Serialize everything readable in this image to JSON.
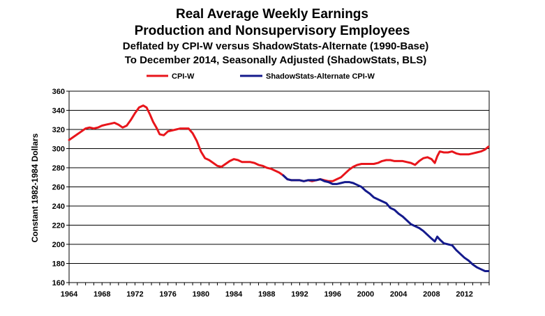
{
  "chart_data": {
    "type": "line",
    "title": [
      "Real Average Weekly Earnings",
      "Production and Nonsupervisory Employees"
    ],
    "subtitle": [
      "Deflated by CPI-W versus ShadowStats-Alternate (1990-Base)",
      "To December 2014, Seasonally Adjusted (ShadowStats, BLS)"
    ],
    "xlabel": "",
    "ylabel": "Constant 1982-1984 Dollars",
    "xlim": [
      1964,
      2015
    ],
    "ylim": [
      160,
      360
    ],
    "x_ticks": [
      "1964",
      "1968",
      "1972",
      "1976",
      "1980",
      "1984",
      "1988",
      "1992",
      "1996",
      "2000",
      "2004",
      "2008",
      "2012"
    ],
    "y_ticks": [
      "160",
      "180",
      "200",
      "220",
      "240",
      "260",
      "280",
      "300",
      "320",
      "340",
      "360"
    ],
    "grid": true,
    "legend_position": "top",
    "colors": {
      "cpi_w": "#e8151b",
      "shadowstats": "#141a8c"
    },
    "series": [
      {
        "name": "CPI-W",
        "color": "#e8151b",
        "points": [
          [
            1964.0,
            309
          ],
          [
            1964.5,
            312
          ],
          [
            1965.0,
            315
          ],
          [
            1965.5,
            318
          ],
          [
            1966.0,
            321
          ],
          [
            1966.5,
            322
          ],
          [
            1967.0,
            321
          ],
          [
            1967.5,
            322
          ],
          [
            1968.0,
            324
          ],
          [
            1968.5,
            325
          ],
          [
            1969.0,
            326
          ],
          [
            1969.5,
            327
          ],
          [
            1970.0,
            325
          ],
          [
            1970.5,
            322
          ],
          [
            1971.0,
            324
          ],
          [
            1971.5,
            330
          ],
          [
            1972.0,
            337
          ],
          [
            1972.5,
            343
          ],
          [
            1973.0,
            345
          ],
          [
            1973.4,
            343
          ],
          [
            1973.8,
            336
          ],
          [
            1974.2,
            328
          ],
          [
            1974.6,
            322
          ],
          [
            1975.0,
            315
          ],
          [
            1975.5,
            314
          ],
          [
            1976.0,
            318
          ],
          [
            1976.5,
            319
          ],
          [
            1977.0,
            320
          ],
          [
            1977.5,
            321
          ],
          [
            1978.0,
            321
          ],
          [
            1978.5,
            321
          ],
          [
            1979.0,
            316
          ],
          [
            1979.5,
            308
          ],
          [
            1980.0,
            297
          ],
          [
            1980.5,
            290
          ],
          [
            1981.0,
            288
          ],
          [
            1981.5,
            285
          ],
          [
            1982.0,
            282
          ],
          [
            1982.5,
            281
          ],
          [
            1983.0,
            284
          ],
          [
            1983.5,
            287
          ],
          [
            1984.0,
            289
          ],
          [
            1984.5,
            288
          ],
          [
            1985.0,
            286
          ],
          [
            1985.5,
            286
          ],
          [
            1986.0,
            286
          ],
          [
            1986.5,
            285
          ],
          [
            1987.0,
            283
          ],
          [
            1987.5,
            282
          ],
          [
            1988.0,
            280
          ],
          [
            1988.5,
            279
          ],
          [
            1989.0,
            277
          ],
          [
            1989.5,
            275
          ],
          [
            1990.0,
            272
          ],
          [
            1990.5,
            268
          ],
          [
            1991.0,
            267
          ],
          [
            1991.5,
            267
          ],
          [
            1992.0,
            267
          ],
          [
            1992.5,
            266
          ],
          [
            1993.0,
            267
          ],
          [
            1993.5,
            266
          ],
          [
            1994.0,
            267
          ],
          [
            1994.5,
            268
          ],
          [
            1995.0,
            267
          ],
          [
            1995.5,
            266
          ],
          [
            1996.0,
            266
          ],
          [
            1996.5,
            268
          ],
          [
            1997.0,
            270
          ],
          [
            1997.5,
            274
          ],
          [
            1998.0,
            278
          ],
          [
            1998.5,
            281
          ],
          [
            1999.0,
            283
          ],
          [
            1999.5,
            284
          ],
          [
            2000.0,
            284
          ],
          [
            2000.5,
            284
          ],
          [
            2001.0,
            284
          ],
          [
            2001.5,
            285
          ],
          [
            2002.0,
            287
          ],
          [
            2002.5,
            288
          ],
          [
            2003.0,
            288
          ],
          [
            2003.5,
            287
          ],
          [
            2004.0,
            287
          ],
          [
            2004.5,
            287
          ],
          [
            2005.0,
            286
          ],
          [
            2005.5,
            285
          ],
          [
            2006.0,
            283
          ],
          [
            2006.5,
            287
          ],
          [
            2007.0,
            290
          ],
          [
            2007.5,
            291
          ],
          [
            2008.0,
            289
          ],
          [
            2008.4,
            285
          ],
          [
            2008.7,
            292
          ],
          [
            2009.0,
            297
          ],
          [
            2009.5,
            296
          ],
          [
            2010.0,
            296
          ],
          [
            2010.5,
            297
          ],
          [
            2011.0,
            295
          ],
          [
            2011.5,
            294
          ],
          [
            2012.0,
            294
          ],
          [
            2012.5,
            294
          ],
          [
            2013.0,
            295
          ],
          [
            2013.5,
            296
          ],
          [
            2014.0,
            297
          ],
          [
            2014.5,
            299
          ],
          [
            2014.9,
            302
          ]
        ]
      },
      {
        "name": "ShadowStats-Alternate CPI-W",
        "color": "#141a8c",
        "points": [
          [
            1990.0,
            272
          ],
          [
            1990.5,
            268
          ],
          [
            1991.0,
            267
          ],
          [
            1991.5,
            267
          ],
          [
            1992.0,
            267
          ],
          [
            1992.5,
            266
          ],
          [
            1993.0,
            267
          ],
          [
            1993.5,
            267
          ],
          [
            1994.0,
            267
          ],
          [
            1994.5,
            268
          ],
          [
            1995.0,
            266
          ],
          [
            1995.5,
            265
          ],
          [
            1996.0,
            263
          ],
          [
            1996.5,
            263
          ],
          [
            1997.0,
            264
          ],
          [
            1997.5,
            265
          ],
          [
            1998.0,
            265
          ],
          [
            1998.5,
            264
          ],
          [
            1999.0,
            262
          ],
          [
            1999.5,
            260
          ],
          [
            2000.0,
            256
          ],
          [
            2000.5,
            253
          ],
          [
            2001.0,
            249
          ],
          [
            2001.5,
            247
          ],
          [
            2002.0,
            245
          ],
          [
            2002.5,
            243
          ],
          [
            2003.0,
            238
          ],
          [
            2003.5,
            236
          ],
          [
            2004.0,
            232
          ],
          [
            2004.5,
            229
          ],
          [
            2005.0,
            225
          ],
          [
            2005.5,
            221
          ],
          [
            2006.0,
            219
          ],
          [
            2006.5,
            217
          ],
          [
            2007.0,
            214
          ],
          [
            2007.5,
            210
          ],
          [
            2008.0,
            206
          ],
          [
            2008.4,
            203
          ],
          [
            2008.7,
            208
          ],
          [
            2009.0,
            205
          ],
          [
            2009.5,
            201
          ],
          [
            2010.0,
            200
          ],
          [
            2010.5,
            199
          ],
          [
            2011.0,
            194
          ],
          [
            2011.5,
            190
          ],
          [
            2012.0,
            186
          ],
          [
            2012.5,
            183
          ],
          [
            2013.0,
            179
          ],
          [
            2013.5,
            176
          ],
          [
            2014.0,
            174
          ],
          [
            2014.5,
            172
          ],
          [
            2014.9,
            172
          ]
        ]
      }
    ]
  }
}
